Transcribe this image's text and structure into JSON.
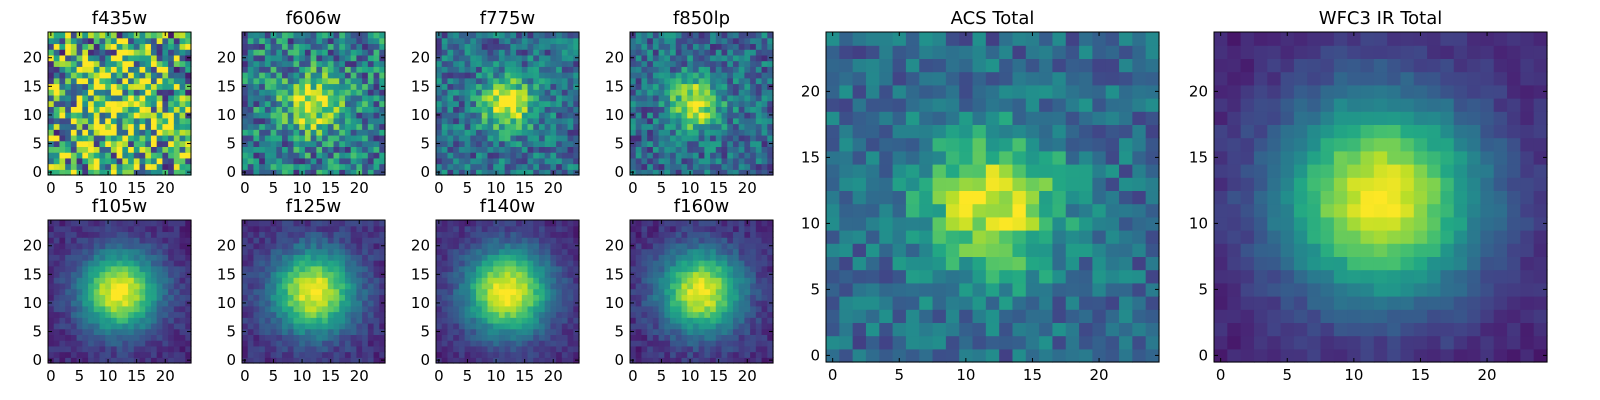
{
  "chart_data": [
    {
      "type": "heatmap",
      "title": "f435w",
      "xlim": [
        0,
        24
      ],
      "ylim": [
        0,
        24
      ],
      "grid_size": 25,
      "x_ticks": [
        0,
        5,
        10,
        15,
        20
      ],
      "y_ticks": [
        0,
        5,
        10,
        15,
        20
      ],
      "colormap": "viridis",
      "center": [
        11,
        12
      ],
      "sigma": 6,
      "noise": 0.55,
      "peak_brightness": 0.25,
      "background": 0.6,
      "seed": 11
    },
    {
      "type": "heatmap",
      "title": "f606w",
      "xlim": [
        0,
        24
      ],
      "ylim": [
        0,
        24
      ],
      "grid_size": 25,
      "x_ticks": [
        0,
        5,
        10,
        15,
        20
      ],
      "y_ticks": [
        0,
        5,
        10,
        15,
        20
      ],
      "colormap": "viridis",
      "center": [
        12,
        12
      ],
      "sigma": 3.5,
      "noise": 0.3,
      "peak_brightness": 0.55,
      "background": 0.42,
      "seed": 23
    },
    {
      "type": "heatmap",
      "title": "f775w",
      "xlim": [
        0,
        24
      ],
      "ylim": [
        0,
        24
      ],
      "grid_size": 25,
      "x_ticks": [
        0,
        5,
        10,
        15,
        20
      ],
      "y_ticks": [
        0,
        5,
        10,
        15,
        20
      ],
      "colormap": "viridis",
      "center": [
        12,
        12
      ],
      "sigma": 3.2,
      "noise": 0.22,
      "peak_brightness": 0.65,
      "background": 0.36,
      "seed": 37
    },
    {
      "type": "heatmap",
      "title": "f850lp",
      "xlim": [
        0,
        24
      ],
      "ylim": [
        0,
        24
      ],
      "grid_size": 25,
      "x_ticks": [
        0,
        5,
        10,
        15,
        20
      ],
      "y_ticks": [
        0,
        5,
        10,
        15,
        20
      ],
      "colormap": "viridis",
      "center": [
        11,
        12
      ],
      "sigma": 3.2,
      "noise": 0.22,
      "peak_brightness": 0.62,
      "background": 0.34,
      "seed": 41
    },
    {
      "type": "heatmap",
      "title": "f105w",
      "xlim": [
        0,
        24
      ],
      "ylim": [
        0,
        24
      ],
      "grid_size": 25,
      "x_ticks": [
        0,
        5,
        10,
        15,
        20
      ],
      "y_ticks": [
        0,
        5,
        10,
        15,
        20
      ],
      "colormap": "viridis",
      "center": [
        12,
        12
      ],
      "sigma": 4.8,
      "noise": 0.07,
      "peak_brightness": 0.88,
      "background": 0.12,
      "seed": 53
    },
    {
      "type": "heatmap",
      "title": "f125w",
      "xlim": [
        0,
        24
      ],
      "ylim": [
        0,
        24
      ],
      "grid_size": 25,
      "x_ticks": [
        0,
        5,
        10,
        15,
        20
      ],
      "y_ticks": [
        0,
        5,
        10,
        15,
        20
      ],
      "colormap": "viridis",
      "center": [
        12,
        12
      ],
      "sigma": 5,
      "noise": 0.08,
      "peak_brightness": 0.86,
      "background": 0.13,
      "seed": 61
    },
    {
      "type": "heatmap",
      "title": "f140w",
      "xlim": [
        0,
        24
      ],
      "ylim": [
        0,
        24
      ],
      "grid_size": 25,
      "x_ticks": [
        0,
        5,
        10,
        15,
        20
      ],
      "y_ticks": [
        0,
        5,
        10,
        15,
        20
      ],
      "colormap": "viridis",
      "center": [
        12,
        12
      ],
      "sigma": 5.2,
      "noise": 0.07,
      "peak_brightness": 0.88,
      "background": 0.12,
      "seed": 71
    },
    {
      "type": "heatmap",
      "title": "f160w",
      "xlim": [
        0,
        24
      ],
      "ylim": [
        0,
        24
      ],
      "grid_size": 25,
      "x_ticks": [
        0,
        5,
        10,
        15,
        20
      ],
      "y_ticks": [
        0,
        5,
        10,
        15,
        20
      ],
      "colormap": "viridis",
      "center": [
        12,
        12
      ],
      "sigma": 5,
      "noise": 0.08,
      "peak_brightness": 0.86,
      "background": 0.12,
      "seed": 83
    },
    {
      "type": "heatmap",
      "title": "ACS Total",
      "xlim": [
        0,
        24
      ],
      "ylim": [
        0,
        24
      ],
      "grid_size": 25,
      "x_ticks": [
        0,
        5,
        10,
        15,
        20
      ],
      "y_ticks": [
        0,
        5,
        10,
        15,
        20
      ],
      "colormap": "viridis",
      "center": [
        12,
        11.5
      ],
      "sigma": 3.8,
      "noise": 0.16,
      "peak_brightness": 0.62,
      "background": 0.34,
      "seed": 97
    },
    {
      "type": "heatmap",
      "title": "WFC3 IR Total",
      "xlim": [
        0,
        24
      ],
      "ylim": [
        0,
        24
      ],
      "grid_size": 25,
      "x_ticks": [
        0,
        5,
        10,
        15,
        20
      ],
      "y_ticks": [
        0,
        5,
        10,
        15,
        20
      ],
      "colormap": "viridis",
      "center": [
        12,
        12
      ],
      "sigma": 5.4,
      "noise": 0.05,
      "peak_brightness": 0.88,
      "background": 0.1,
      "seed": 101
    }
  ]
}
